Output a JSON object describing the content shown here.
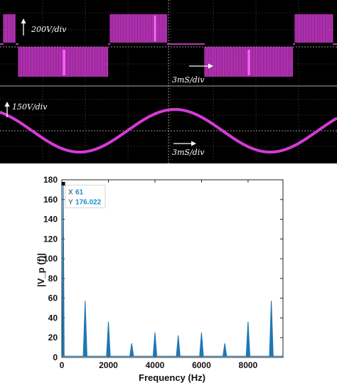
{
  "colors": {
    "scope_bg": "#000000",
    "scope_trace": "#d63ad6",
    "scope_grid": "#7f7f7f",
    "spectrum_line": "#1f77b4",
    "datatip_text": "#1a8cc8"
  },
  "scope": {
    "top_panel_label": "200V/div",
    "top_time_label": "3mS/div",
    "bottom_panel_label": "150V/div",
    "bottom_time_label": "3mS/div"
  },
  "chart_data": [
    {
      "type": "line",
      "ylabel": "|V_p (f)|",
      "xlabel": "Frequency (Hz)",
      "xlim": [
        0,
        9500
      ],
      "ylim": [
        0,
        180
      ],
      "x_ticks": [
        0,
        2000,
        4000,
        6000,
        8000
      ],
      "y_ticks": [
        0,
        20,
        40,
        60,
        80,
        100,
        120,
        140,
        160,
        180
      ],
      "grid": false,
      "series": [
        {
          "x": [
            61,
            1000,
            2000,
            3000,
            4000,
            5000,
            6000,
            7000,
            8000,
            9000
          ],
          "values": [
            176.022,
            57,
            36,
            14,
            25,
            22,
            25,
            14,
            36,
            57
          ]
        }
      ],
      "datatip": {
        "x_label": "X",
        "x_value": "61",
        "y_label": "Y",
        "y_value": "176.022"
      }
    }
  ]
}
